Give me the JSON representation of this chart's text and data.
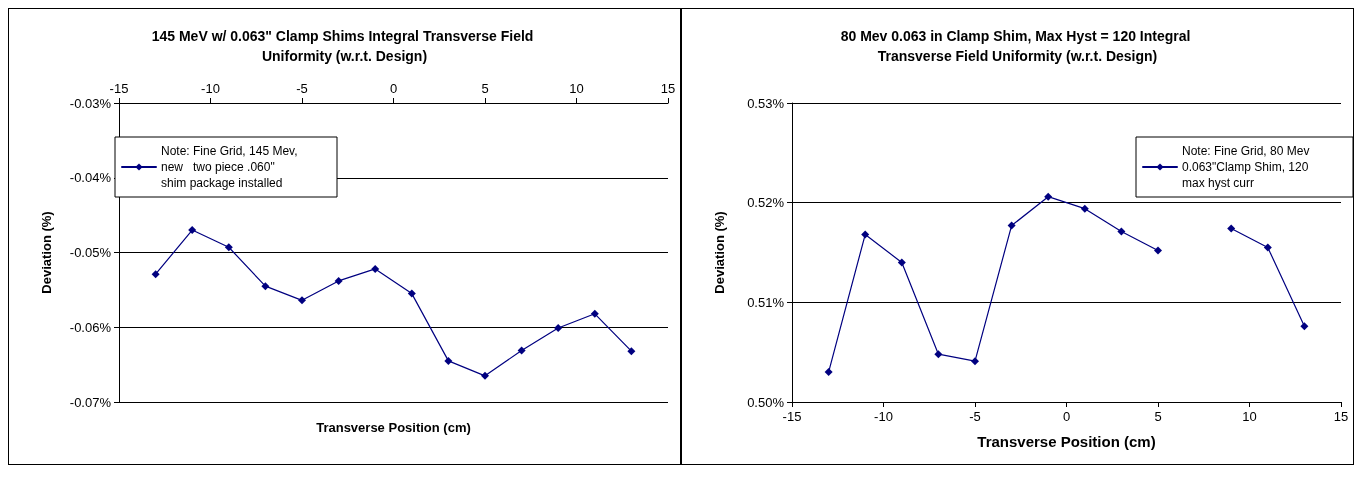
{
  "chart_data": [
    {
      "type": "line",
      "title": "145 MeV w/ 0.063\" Clamp Shims Integral Transverse Field Uniformity (w.r.t. Design)",
      "xlabel": "Transverse Position (cm)",
      "ylabel": "Deviation (%)",
      "x": [
        -13,
        -11,
        -9,
        -7,
        -5,
        -3,
        -1,
        1,
        3,
        5,
        7,
        9,
        11,
        13
      ],
      "series": [
        {
          "name": "Note: Fine Grid, 145 Mev,new   two piece .060\" shim package installed",
          "color": "#000080",
          "values": [
            -0.0529,
            -0.047,
            -0.0493,
            -0.0545,
            -0.0564,
            -0.0538,
            -0.0522,
            -0.0555,
            -0.0645,
            -0.0665,
            -0.0631,
            -0.0601,
            -0.0582,
            -0.0632
          ]
        }
      ],
      "xlim": [
        -15,
        15
      ],
      "xticks": [
        -15,
        -10,
        -5,
        0,
        5,
        10,
        15
      ],
      "ylim": [
        -0.07,
        -0.03
      ],
      "yticks": [
        {
          "value": -0.07,
          "label": "-0.07%"
        },
        {
          "value": -0.06,
          "label": "-0.06%"
        },
        {
          "value": -0.05,
          "label": "-0.05%"
        },
        {
          "value": -0.04,
          "label": "-0.04%"
        },
        {
          "value": -0.03,
          "label": "-0.03%"
        }
      ],
      "grid": "y",
      "legend": "top left",
      "marker": "diamond",
      "line_style": "solid"
    },
    {
      "type": "line",
      "title": "80 Mev 0.063 in Clamp Shim, Max Hyst = 120 Integral Transverse Field Uniformity (w.r.t. Design)",
      "xlabel": "Transverse Position (cm)",
      "ylabel": "Deviation (%)",
      "x": [
        -13,
        -11,
        -9,
        -7,
        -5,
        -3,
        -1,
        1,
        3,
        5,
        7,
        9,
        11,
        13
      ],
      "series": [
        {
          "name": "Note: Fine Grid, 80 Mev 0.063\"Clamp Shim, 120 max hyst curr",
          "color": "#000080",
          "values": [
            0.503,
            0.5168,
            0.514,
            0.5048,
            0.5041,
            0.5177,
            0.5206,
            0.5194,
            0.5171,
            0.5152,
            null,
            0.5174,
            0.5155,
            0.5076
          ]
        }
      ],
      "xlim": [
        -15,
        15
      ],
      "xticks": [
        -15,
        -10,
        -5,
        0,
        5,
        10,
        15
      ],
      "ylim": [
        0.5,
        0.53
      ],
      "yticks": [
        {
          "value": 0.5,
          "label": "0.50%"
        },
        {
          "value": 0.51,
          "label": "0.51%"
        },
        {
          "value": 0.52,
          "label": "0.52%"
        },
        {
          "value": 0.53,
          "label": "0.53%"
        }
      ],
      "grid": "y",
      "legend": "top right",
      "marker": "diamond",
      "line_style": "solid"
    }
  ]
}
